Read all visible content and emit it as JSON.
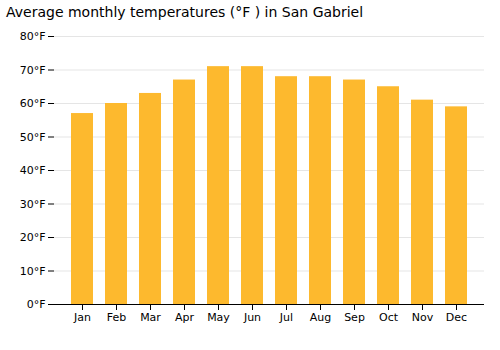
{
  "chart_data": {
    "type": "bar",
    "title": "Average monthly temperatures (°F ) in San Gabriel",
    "categories": [
      "Jan",
      "Feb",
      "Mar",
      "Apr",
      "May",
      "Jun",
      "Jul",
      "Aug",
      "Sep",
      "Oct",
      "Nov",
      "Dec"
    ],
    "values": [
      57,
      60,
      63,
      67,
      71,
      71,
      68,
      68,
      67,
      65,
      61,
      59
    ],
    "color": "#FDB92E",
    "ylim": [
      0,
      80
    ],
    "yticks": [
      {
        "value": 0,
        "label": "0°F"
      },
      {
        "value": 10,
        "label": "10°F"
      },
      {
        "value": 20,
        "label": "20°F"
      },
      {
        "value": 30,
        "label": "30°F"
      },
      {
        "value": 40,
        "label": "40°F"
      },
      {
        "value": 50,
        "label": "50°F"
      },
      {
        "value": 60,
        "label": "60°F"
      },
      {
        "value": 70,
        "label": "70°F"
      },
      {
        "value": 80,
        "label": "80°F"
      }
    ],
    "grid": true
  }
}
